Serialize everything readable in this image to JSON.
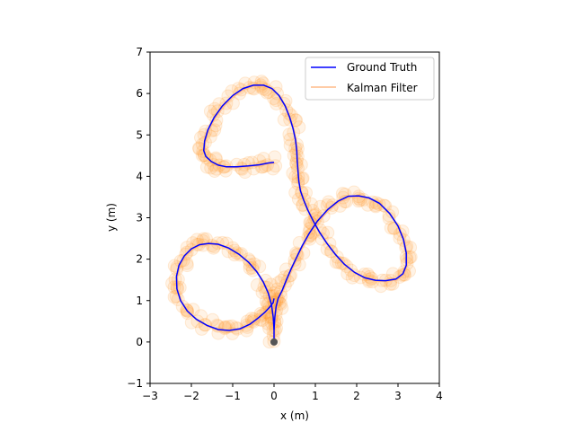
{
  "chart_data": {
    "type": "line",
    "title": "",
    "xlabel": "x (m)",
    "ylabel": "y (m)",
    "xlim": [
      -3,
      4
    ],
    "ylim": [
      -1,
      7
    ],
    "xticks": [
      -3,
      -2,
      -1,
      0,
      1,
      2,
      3,
      4
    ],
    "yticks": [
      -1,
      0,
      1,
      2,
      3,
      4,
      5,
      6,
      7
    ],
    "xtick_labels": [
      "−3",
      "−2",
      "−1",
      "0",
      "1",
      "2",
      "3",
      "4"
    ],
    "ytick_labels": [
      "−1",
      "0",
      "1",
      "2",
      "3",
      "4",
      "5",
      "6",
      "7"
    ],
    "grid": false,
    "legend_position": "top-right",
    "series": [
      {
        "name": "Ground Truth",
        "color": "#0000ff",
        "style": "line",
        "x": [
          0.0,
          0.0,
          0.02,
          0.05,
          0.1,
          0.2,
          0.3,
          0.42,
          0.55,
          0.68,
          0.85,
          1.05,
          1.3,
          1.55,
          1.8,
          2.05,
          2.3,
          2.55,
          2.8,
          3.0,
          3.13,
          3.2,
          3.2,
          3.12,
          2.95,
          2.7,
          2.45,
          2.2,
          1.95,
          1.7,
          1.48,
          1.28,
          1.1,
          0.95,
          0.82,
          0.72,
          0.64,
          0.6,
          0.58,
          0.56,
          0.55,
          0.52,
          0.46,
          0.38,
          0.27,
          0.12,
          -0.05,
          -0.25,
          -0.5,
          -0.75,
          -1.0,
          -1.25,
          -1.45,
          -1.6,
          -1.68,
          -1.7,
          -1.65,
          -1.52,
          -1.35,
          -1.15,
          -0.9,
          -0.62,
          -0.35,
          -0.15,
          0.0
        ],
        "y": [
          0.0,
          0.3,
          0.6,
          0.85,
          1.05,
          1.25,
          1.5,
          1.78,
          2.05,
          2.32,
          2.62,
          2.92,
          3.2,
          3.4,
          3.52,
          3.53,
          3.48,
          3.35,
          3.1,
          2.8,
          2.48,
          2.15,
          1.85,
          1.65,
          1.52,
          1.48,
          1.49,
          1.55,
          1.68,
          1.88,
          2.12,
          2.38,
          2.65,
          2.92,
          3.18,
          3.42,
          3.65,
          3.88,
          4.12,
          4.38,
          4.62,
          4.88,
          5.15,
          5.42,
          5.7,
          5.95,
          6.12,
          6.2,
          6.2,
          6.12,
          5.95,
          5.7,
          5.42,
          5.12,
          4.85,
          4.62,
          4.48,
          4.36,
          4.27,
          4.23,
          4.23,
          4.25,
          4.28,
          4.32,
          4.34
        ]
      },
      {
        "name": "",
        "color": "#0000ff",
        "style": "line",
        "x": [
          0.0,
          -0.02,
          -0.1,
          -0.22,
          -0.38,
          -0.58,
          -0.82,
          -1.08,
          -1.35,
          -1.62,
          -1.88,
          -2.1,
          -2.26,
          -2.35,
          -2.36,
          -2.3,
          -2.17,
          -2.0,
          -1.8,
          -1.58,
          -1.35,
          -1.1,
          -0.85,
          -0.62,
          -0.42,
          -0.26,
          -0.14,
          -0.06,
          -0.02,
          0.0
        ],
        "y": [
          1.05,
          0.95,
          0.85,
          0.72,
          0.58,
          0.43,
          0.32,
          0.28,
          0.3,
          0.4,
          0.55,
          0.75,
          1.0,
          1.28,
          1.58,
          1.85,
          2.08,
          2.25,
          2.35,
          2.38,
          2.36,
          2.27,
          2.12,
          1.93,
          1.7,
          1.45,
          1.18,
          0.9,
          0.6,
          0.3
        ]
      },
      {
        "name": "Kalman Filter",
        "color": "#ffbb88",
        "style": "line"
      }
    ],
    "start_marker": {
      "x": 0,
      "y": 0,
      "color": "#555555"
    },
    "scatter_cloud": {
      "color": "#ff9933",
      "opacity": 0.12
    }
  }
}
